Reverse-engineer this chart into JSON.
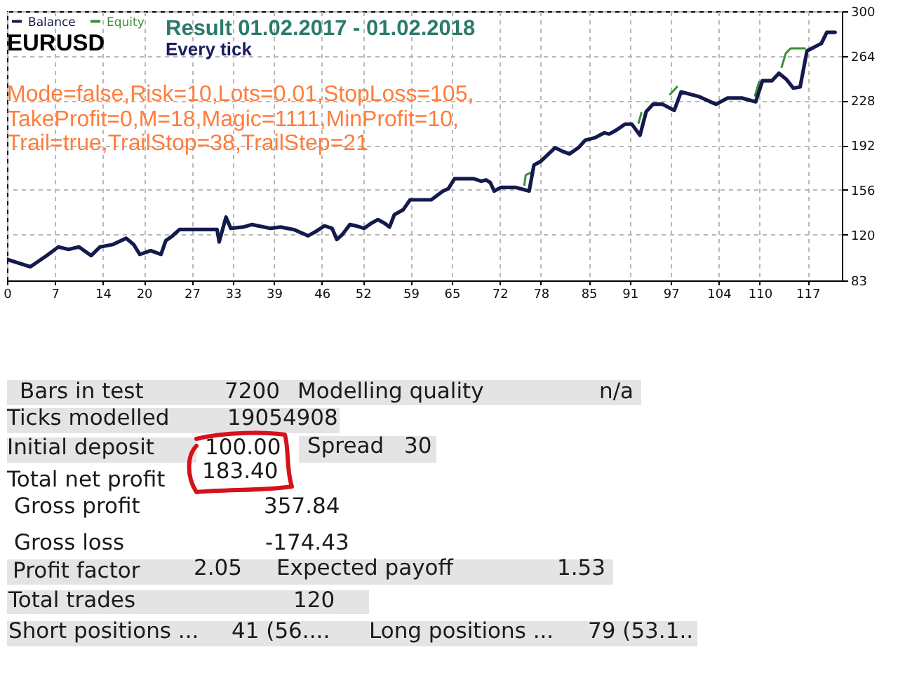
{
  "chart_data": {
    "type": "line",
    "title": "Result 01.02.2017 - 01.02.2018",
    "subtitle": "Every tick",
    "x": [
      0,
      3.4,
      5.8,
      7.5,
      9,
      10.5,
      12.3,
      13.6,
      15.5,
      17.4,
      18.5,
      19.4,
      21,
      22.5,
      23.2,
      24.2,
      25.2,
      30.7,
      31,
      32,
      32.7,
      34.5,
      35.8,
      38.5,
      40,
      41.9,
      44,
      45,
      46.4,
      47.5,
      48.2,
      49,
      50.1,
      51,
      52.2,
      53.2,
      54.2,
      55.2,
      55.9,
      56.6,
      57.9,
      58.9,
      62,
      63.7,
      64.5,
      65.4,
      68.2,
      69.3,
      70,
      70.6,
      71.2,
      72.2,
      74.3,
      76.3,
      77,
      78,
      80.1,
      81.2,
      82.2,
      83.5,
      84.5,
      85.9,
      87.3,
      88,
      89,
      90.3,
      91.3,
      92.5,
      93.4,
      94.4,
      95.8,
      97.5,
      98.5,
      101.2,
      103.6,
      105.3,
      107.4,
      109.4,
      110.4,
      111.8,
      112.8,
      113.9,
      114.9,
      115.9,
      116.9,
      118.3,
      119,
      119.8,
      121
    ],
    "series": [
      {
        "name": "Balance",
        "color": "#141a4e",
        "values": [
          100,
          94,
          103,
          110,
          108,
          110,
          103,
          110,
          112,
          117,
          112,
          104,
          107,
          104,
          115,
          119,
          124,
          124,
          114,
          134,
          125,
          126,
          128,
          125,
          126,
          124,
          119,
          122,
          127,
          125,
          116,
          120,
          128,
          127,
          125,
          129,
          132,
          129,
          126,
          136,
          140,
          148,
          148,
          155,
          157,
          165,
          165,
          163,
          164,
          162,
          155,
          158,
          158,
          155,
          176,
          179,
          190,
          187,
          185,
          190,
          196,
          198,
          202,
          201,
          204,
          209,
          209,
          200,
          219,
          225,
          225,
          220,
          235,
          231,
          225,
          230,
          230,
          227,
          244,
          244,
          250,
          245,
          238,
          239,
          268,
          272,
          274,
          283,
          283
        ]
      },
      {
        "name": "Equity",
        "color": "#3a8f3a",
        "x": [
          75.6,
          75.8,
          76.6,
          84,
          92.3,
          92.7,
          95,
          96.9,
          97.9,
          103,
          109.3,
          109.9,
          111,
          113.2,
          113.8,
          114.5,
          115.9,
          116.6
        ],
        "values": [
          160,
          168,
          170,
          null,
          210,
          218,
          null,
          233,
          239,
          null,
          232,
          243,
          null,
          255,
          266,
          270,
          270,
          270
        ]
      }
    ],
    "xlim": [
      0,
      122
    ],
    "xticks": [
      0,
      7,
      14,
      20,
      27,
      33,
      39,
      46,
      52,
      59,
      65,
      72,
      78,
      85,
      91,
      97,
      104,
      110,
      117
    ],
    "ylim": [
      83,
      300
    ],
    "yticks": [
      83,
      120,
      156,
      192,
      228,
      264,
      300
    ],
    "grid": true,
    "legend": "top left",
    "annotations": [
      "EURUSD",
      "Mode=false,Risk=10,Lots=0.01,StopLoss=105,",
      "TakeProfit=0,M=18,Magic=1111,MinProfit=10,",
      "Trail=true,TrailStop=38,TrailStep=21",
      "Bars in test",
      "7200",
      "Modelling quality",
      "n/a",
      "Ticks modelled",
      "19054908",
      "Initial deposit",
      "100.00",
      "Spread",
      "30",
      "Total net profit",
      "183.40",
      "Gross profit",
      "357.84",
      "Gross loss",
      "-174.43",
      "Profit factor",
      "2.05",
      "Expected payoff",
      "1.53",
      "Total trades",
      "120",
      "Short positions ...",
      "41 (56....",
      "Long positions ...",
      "79 (53.1.."
    ]
  }
}
